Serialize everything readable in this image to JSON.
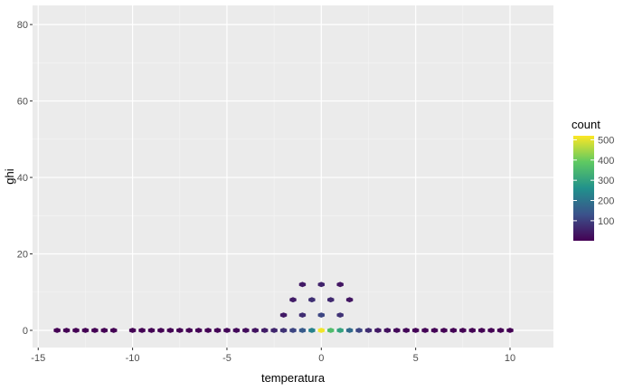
{
  "chart_data": {
    "type": "heatmap",
    "subtype": "hexbin",
    "title": "",
    "xlabel": "temperatura",
    "ylabel": "ghi",
    "xlim": [
      -15.3,
      12.3
    ],
    "ylim": [
      -4.5,
      85
    ],
    "x_ticks": [
      -15,
      -10,
      -5,
      0,
      5,
      10
    ],
    "y_ticks": [
      0,
      20,
      40,
      60,
      80
    ],
    "grid": true,
    "legend": {
      "title": "count",
      "position": "right",
      "ticks": [
        100,
        200,
        300,
        400,
        500
      ],
      "range": [
        1,
        520
      ],
      "colors": [
        "#440154",
        "#3b528b",
        "#21918c",
        "#5ec962",
        "#fde725"
      ]
    },
    "bins": [
      {
        "x": -14,
        "y": 0,
        "count": 1
      },
      {
        "x": -13.5,
        "y": 0,
        "count": 1
      },
      {
        "x": -13,
        "y": 0,
        "count": 1
      },
      {
        "x": -12.5,
        "y": 0,
        "count": 1
      },
      {
        "x": -12,
        "y": 0,
        "count": 1
      },
      {
        "x": -11.5,
        "y": 0,
        "count": 1
      },
      {
        "x": -11,
        "y": 0,
        "count": 1
      },
      {
        "x": -10,
        "y": 0,
        "count": 2
      },
      {
        "x": -9.5,
        "y": 0,
        "count": 2
      },
      {
        "x": -9,
        "y": 0,
        "count": 2
      },
      {
        "x": -8.5,
        "y": 0,
        "count": 2
      },
      {
        "x": -8,
        "y": 0,
        "count": 2
      },
      {
        "x": -7.5,
        "y": 0,
        "count": 2
      },
      {
        "x": -7,
        "y": 0,
        "count": 2
      },
      {
        "x": -6.5,
        "y": 0,
        "count": 3
      },
      {
        "x": -6,
        "y": 0,
        "count": 4
      },
      {
        "x": -5.5,
        "y": 0,
        "count": 6
      },
      {
        "x": -5,
        "y": 0,
        "count": 10
      },
      {
        "x": -4.5,
        "y": 0,
        "count": 14
      },
      {
        "x": -4,
        "y": 0,
        "count": 20
      },
      {
        "x": -3.5,
        "y": 0,
        "count": 30
      },
      {
        "x": -3,
        "y": 0,
        "count": 45
      },
      {
        "x": -2.5,
        "y": 0,
        "count": 60
      },
      {
        "x": -2,
        "y": 0,
        "count": 80
      },
      {
        "x": -1.5,
        "y": 0,
        "count": 110
      },
      {
        "x": -1,
        "y": 0,
        "count": 150
      },
      {
        "x": -0.5,
        "y": 0,
        "count": 230
      },
      {
        "x": 0,
        "y": 0,
        "count": 510
      },
      {
        "x": 0.5,
        "y": 0,
        "count": 360
      },
      {
        "x": 1,
        "y": 0,
        "count": 300
      },
      {
        "x": 1.5,
        "y": 0,
        "count": 180
      },
      {
        "x": 2,
        "y": 0,
        "count": 110
      },
      {
        "x": 2.5,
        "y": 0,
        "count": 70
      },
      {
        "x": 3,
        "y": 0,
        "count": 40
      },
      {
        "x": 3.5,
        "y": 0,
        "count": 25
      },
      {
        "x": 4,
        "y": 0,
        "count": 15
      },
      {
        "x": 4.5,
        "y": 0,
        "count": 10
      },
      {
        "x": 5,
        "y": 0,
        "count": 8
      },
      {
        "x": 5.5,
        "y": 0,
        "count": 6
      },
      {
        "x": 6,
        "y": 0,
        "count": 5
      },
      {
        "x": 6.5,
        "y": 0,
        "count": 4
      },
      {
        "x": 7,
        "y": 0,
        "count": 3
      },
      {
        "x": 7.5,
        "y": 0,
        "count": 2
      },
      {
        "x": 8,
        "y": 0,
        "count": 2
      },
      {
        "x": 8.5,
        "y": 0,
        "count": 2
      },
      {
        "x": 9,
        "y": 0,
        "count": 2
      },
      {
        "x": 9.5,
        "y": 0,
        "count": 1
      },
      {
        "x": 10,
        "y": 0,
        "count": 1
      },
      {
        "x": -2,
        "y": 4,
        "count": 40
      },
      {
        "x": -1,
        "y": 4,
        "count": 70
      },
      {
        "x": 0,
        "y": 4,
        "count": 110
      },
      {
        "x": 1,
        "y": 4,
        "count": 80
      },
      {
        "x": -1.5,
        "y": 8,
        "count": 45
      },
      {
        "x": -0.5,
        "y": 8,
        "count": 75
      },
      {
        "x": 0.5,
        "y": 8,
        "count": 65
      },
      {
        "x": 1.5,
        "y": 8,
        "count": 35
      },
      {
        "x": -1,
        "y": 12,
        "count": 40
      },
      {
        "x": 0,
        "y": 12,
        "count": 55
      },
      {
        "x": 1,
        "y": 12,
        "count": 35
      }
    ]
  }
}
